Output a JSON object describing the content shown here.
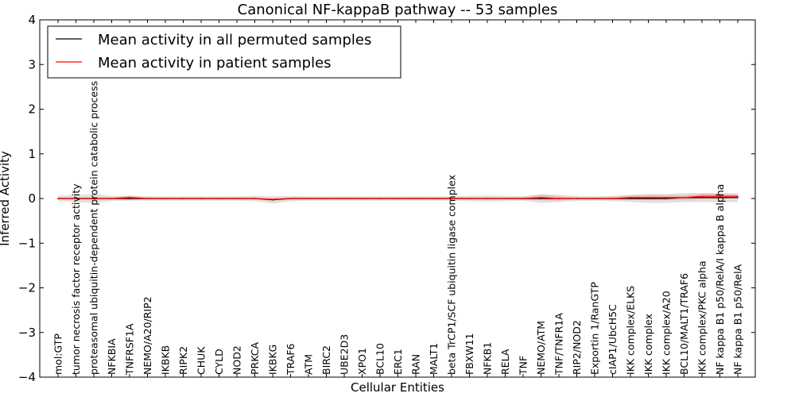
{
  "chart_data": {
    "type": "line",
    "title": "Canonical NF-kappaB pathway -- 53 samples",
    "xlabel": "Cellular Entities",
    "ylabel": "Inferred Activity",
    "ylim": [
      -4,
      4
    ],
    "yticks": [
      -4,
      -3,
      -2,
      -1,
      0,
      1,
      2,
      3,
      4
    ],
    "ytick_labels": [
      "−4",
      "−3",
      "−2",
      "−1",
      "0",
      "1",
      "2",
      "3",
      "4"
    ],
    "grid": false,
    "legend_position": "top-left",
    "categories": [
      "mol:GTP",
      "tumor necrosis factor receptor activity",
      "proteasomal ubiquitin-dependent protein catabolic process",
      "NFKBIA",
      "TNFRSF1A",
      "NEMO/A20/RIP2",
      "IKBKB",
      "RIPK2",
      "CHUK",
      "CYLD",
      "NOD2",
      "PRKCA",
      "IKBKG",
      "TRAF6",
      "ATM",
      "BIRC2",
      "UBE2D3",
      "XPO1",
      "BCL10",
      "ERC1",
      "RAN",
      "MALT1",
      "beta TrCP1/SCF ubiquitin ligase complex",
      "FBXW11",
      "NFKB1",
      "RELA",
      "TNF",
      "NEMO/ATM",
      "TNF/TNFR1A",
      "RIP2/NOD2",
      "Exportin 1/RanGTP",
      "cIAP1/UbcH5C",
      "IKK complex/ELKS",
      "IKK complex",
      "IKK complex/A20",
      "BCL10/MALT1/TRAF6",
      "IKK complex/PKC alpha",
      "NF kappa B1 p50/RelA/I kappa B alpha",
      "NF kappa B1 p50/RelA"
    ],
    "series": [
      {
        "name": "Mean activity in all permuted samples",
        "color": "#000000",
        "band_color": "#bbbbbb",
        "values": [
          0.0,
          0.0,
          0.0,
          0.0,
          0.0,
          0.0,
          0.0,
          0.0,
          0.0,
          0.0,
          0.0,
          0.0,
          -0.03,
          0.0,
          0.0,
          0.0,
          0.0,
          0.0,
          0.0,
          0.0,
          0.0,
          0.0,
          0.0,
          0.0,
          0.0,
          0.0,
          0.0,
          0.0,
          0.0,
          0.0,
          0.0,
          0.0,
          0.0,
          0.0,
          0.0,
          0.02,
          0.02,
          0.02,
          0.02
        ],
        "band_half_width": [
          0.06,
          0.08,
          0.1,
          0.06,
          0.05,
          0.05,
          0.05,
          0.05,
          0.05,
          0.05,
          0.05,
          0.06,
          0.08,
          0.06,
          0.05,
          0.05,
          0.05,
          0.05,
          0.05,
          0.05,
          0.05,
          0.05,
          0.05,
          0.06,
          0.07,
          0.06,
          0.05,
          0.1,
          0.08,
          0.06,
          0.05,
          0.06,
          0.08,
          0.1,
          0.1,
          0.1,
          0.1,
          0.1,
          0.1
        ]
      },
      {
        "name": "Mean activity in patient samples",
        "color": "#ff0000",
        "band_color": "#ff9999",
        "values": [
          0.0,
          0.0,
          0.0,
          0.0,
          0.02,
          0.0,
          0.0,
          0.0,
          0.0,
          0.0,
          0.0,
          0.0,
          -0.02,
          0.0,
          0.0,
          0.0,
          0.0,
          0.0,
          0.0,
          0.0,
          0.0,
          0.0,
          0.0,
          0.0,
          0.0,
          0.0,
          0.0,
          0.02,
          0.0,
          0.0,
          0.0,
          0.0,
          0.02,
          0.02,
          0.02,
          0.02,
          0.05,
          0.05,
          0.05
        ],
        "band_half_width": [
          0.02,
          0.02,
          0.02,
          0.02,
          0.05,
          0.02,
          0.02,
          0.02,
          0.02,
          0.02,
          0.02,
          0.02,
          0.03,
          0.02,
          0.02,
          0.02,
          0.02,
          0.02,
          0.02,
          0.02,
          0.02,
          0.02,
          0.02,
          0.02,
          0.02,
          0.02,
          0.03,
          0.06,
          0.05,
          0.02,
          0.02,
          0.03,
          0.05,
          0.06,
          0.06,
          0.05,
          0.06,
          0.06,
          0.03
        ]
      }
    ]
  }
}
